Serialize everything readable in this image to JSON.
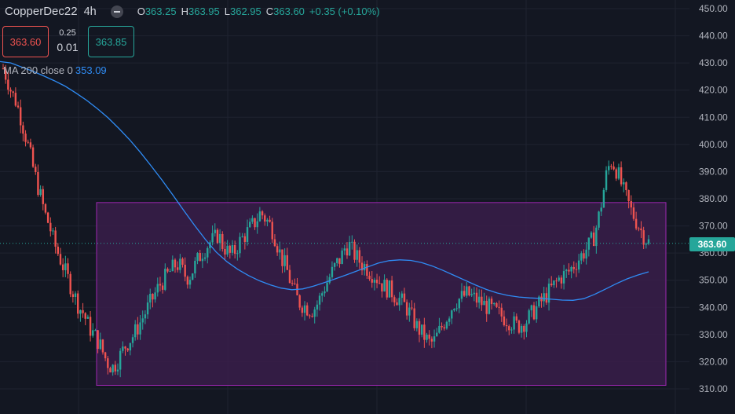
{
  "header": {
    "symbol": "CopperDec22",
    "timeframe": "4h",
    "ohlc": {
      "o_label": "O",
      "o": "363.25",
      "h_label": "H",
      "h": "363.95",
      "l_label": "L",
      "l": "362.95",
      "c_label": "C",
      "c": "363.60",
      "change": "+0.35 (+0.10%)"
    }
  },
  "trade": {
    "sell_price": "363.60",
    "spread_top": "0.25",
    "spread_bottom": "0.01",
    "buy_price": "363.85"
  },
  "indicator": {
    "label": "MA 200 close 0",
    "value": "353.09"
  },
  "last_price_label": "363.60",
  "colors": {
    "background": "#131722",
    "up": "#26a69a",
    "down": "#ef5350",
    "ma_line": "#2f8cf5",
    "range_box_fill": "#3a1d4a",
    "range_box_border": "#9c27b0",
    "grid": "#1f2330",
    "axis_text": "#b2b5be"
  },
  "chart_data": {
    "type": "candlestick",
    "y_axis_ticks": [
      "450.00",
      "440.00",
      "430.00",
      "420.00",
      "410.00",
      "400.00",
      "390.00",
      "380.00",
      "370.00",
      "360.00",
      "350.00",
      "340.00",
      "330.00",
      "320.00",
      "310.00"
    ],
    "ylim": [
      307,
      453
    ],
    "grid": true,
    "last_price": 363.6,
    "range_box": {
      "top": 378.6,
      "bottom": 311.3
    },
    "close_series": [
      428,
      424,
      419,
      416,
      411,
      405,
      399,
      392,
      386,
      380,
      374,
      370,
      364,
      360,
      356,
      352,
      348,
      344,
      340,
      338,
      334,
      331,
      329,
      326,
      322,
      319,
      318,
      320,
      323,
      326,
      328,
      330,
      333,
      336,
      339,
      342,
      345,
      348,
      350,
      352,
      354,
      356,
      355,
      352,
      351,
      354,
      357,
      360,
      362,
      364,
      365,
      367,
      363,
      361,
      359,
      361,
      364,
      366,
      368,
      370,
      372,
      375,
      373,
      371,
      368,
      363,
      358,
      355,
      350,
      346,
      342,
      341,
      340,
      339,
      340,
      343,
      347,
      350,
      353,
      356,
      358,
      362,
      363,
      360,
      358,
      356,
      355,
      353,
      352,
      350,
      348,
      347,
      346,
      344,
      343,
      341,
      339,
      336,
      333,
      331,
      329,
      327,
      327,
      330,
      333,
      336,
      339,
      342,
      343,
      344,
      345,
      344,
      343,
      342,
      341,
      340,
      339,
      338,
      337,
      336,
      335,
      334,
      333,
      334,
      335,
      337,
      339,
      341,
      343,
      345,
      347,
      349,
      351,
      352,
      353,
      355,
      357,
      359,
      361,
      363,
      366,
      372,
      380,
      389,
      394,
      392,
      388,
      383,
      379,
      375,
      372,
      369,
      366,
      364
    ],
    "ma_series": [
      430.5,
      430.0,
      428.5,
      427.0,
      425.3,
      423.5,
      421.5,
      419.0,
      416.3,
      413.2,
      409.8,
      405.9,
      401.7,
      397.0,
      392.0,
      386.8,
      381.3,
      375.7,
      370.2,
      365.0,
      360.4,
      356.8,
      354.0,
      351.7,
      349.8,
      348.3,
      347.1,
      346.5,
      346.8,
      347.8,
      349.1,
      350.5,
      351.9,
      353.4,
      354.9,
      356.3,
      357.2,
      357.5,
      357.3,
      356.5,
      355.2,
      353.6,
      351.8,
      350.0,
      348.2,
      346.6,
      345.3,
      344.4,
      343.8,
      343.5,
      343.3,
      343.0,
      342.7,
      342.6,
      343.2,
      344.8,
      346.7,
      348.7,
      350.5,
      351.9,
      353.09
    ]
  }
}
